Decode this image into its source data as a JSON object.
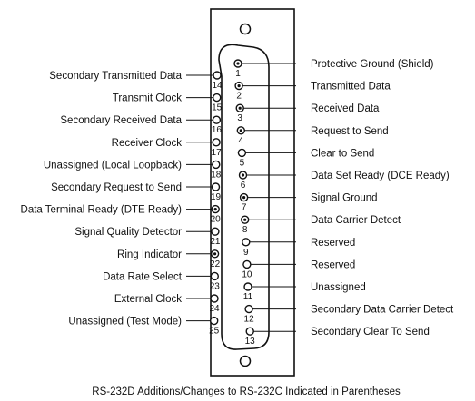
{
  "caption": "RS-232D Additions/Changes to RS-232C Indicated in Parentheses",
  "pins_right": [
    {
      "num": "1",
      "label": "Protective Ground (Shield)",
      "glyph": "dotted"
    },
    {
      "num": "2",
      "label": "Transmitted Data",
      "glyph": "dotted"
    },
    {
      "num": "3",
      "label": "Received Data",
      "glyph": "dotted"
    },
    {
      "num": "4",
      "label": "Request to Send",
      "glyph": "dotted"
    },
    {
      "num": "5",
      "label": "Clear to Send",
      "glyph": "open"
    },
    {
      "num": "6",
      "label": "Data Set Ready (DCE Ready)",
      "glyph": "dotted"
    },
    {
      "num": "7",
      "label": "Signal Ground",
      "glyph": "dotted"
    },
    {
      "num": "8",
      "label": "Data Carrier Detect",
      "glyph": "dotted"
    },
    {
      "num": "9",
      "label": "Reserved",
      "glyph": "open"
    },
    {
      "num": "10",
      "label": "Reserved",
      "glyph": "open"
    },
    {
      "num": "11",
      "label": "Unassigned",
      "glyph": "open"
    },
    {
      "num": "12",
      "label": "Secondary Data Carrier Detect",
      "glyph": "open"
    },
    {
      "num": "13",
      "label": "Secondary Clear To Send",
      "glyph": "open"
    }
  ],
  "pins_left": [
    {
      "num": "14",
      "label": "Secondary Transmitted Data",
      "glyph": "open"
    },
    {
      "num": "15",
      "label": "Transmit Clock",
      "glyph": "open"
    },
    {
      "num": "16",
      "label": "Secondary Received Data",
      "glyph": "open"
    },
    {
      "num": "17",
      "label": "Receiver Clock",
      "glyph": "open"
    },
    {
      "num": "18",
      "label": "Unassigned (Local Loopback)",
      "glyph": "open"
    },
    {
      "num": "19",
      "label": "Secondary Request to Send",
      "glyph": "open"
    },
    {
      "num": "20",
      "label": "Data Terminal Ready (DTE Ready)",
      "glyph": "dotted"
    },
    {
      "num": "21",
      "label": "Signal Quality Detector",
      "glyph": "open"
    },
    {
      "num": "22",
      "label": "Ring Indicator",
      "glyph": "dotted"
    },
    {
      "num": "23",
      "label": "Data Rate Select",
      "glyph": "open"
    },
    {
      "num": "24",
      "label": "External Clock",
      "glyph": "open"
    },
    {
      "num": "25",
      "label": "Unassigned (Test Mode)",
      "glyph": "open"
    }
  ]
}
